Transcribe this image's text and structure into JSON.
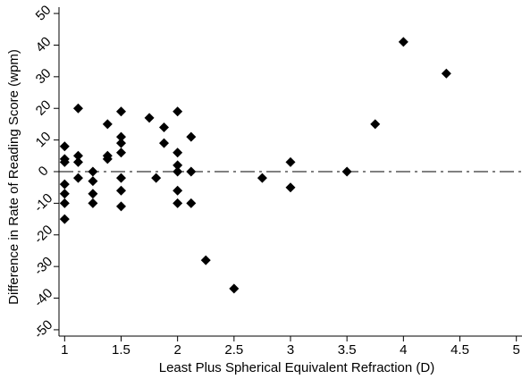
{
  "chart_data": {
    "type": "scatter",
    "title": "",
    "xlabel": "Least Plus Spherical Equivalent Refraction (D)",
    "ylabel": "Difference in Rate of Reading Score (wpm)",
    "xlim": [
      0.95,
      5.05
    ],
    "ylim": [
      -52,
      52
    ],
    "xticks": [
      1,
      1.5,
      2,
      2.5,
      3,
      3.5,
      4,
      4.5,
      5
    ],
    "xtick_labels": [
      "1",
      "1.5",
      "2",
      "2.5",
      "3",
      "3.5",
      "4",
      "4.5",
      "5"
    ],
    "yticks": [
      -50,
      -40,
      -30,
      -20,
      -10,
      0,
      10,
      20,
      30,
      40,
      50
    ],
    "ytick_labels": [
      "-50",
      "-40",
      "-30",
      "-20",
      "-10",
      "0",
      "10",
      "20",
      "30",
      "40",
      "50"
    ],
    "grid": false,
    "legend": "none",
    "marker": "diamond",
    "reference_line": {
      "y": 0,
      "style": "dash-dot"
    },
    "points": [
      [
        1,
        8
      ],
      [
        1,
        4
      ],
      [
        1,
        3
      ],
      [
        1,
        -4
      ],
      [
        1,
        -7
      ],
      [
        1,
        -10
      ],
      [
        1,
        -15
      ],
      [
        1.12,
        20
      ],
      [
        1.12,
        5
      ],
      [
        1.12,
        3
      ],
      [
        1.12,
        -2
      ],
      [
        1.25,
        0
      ],
      [
        1.25,
        -3
      ],
      [
        1.25,
        -7
      ],
      [
        1.25,
        -10
      ],
      [
        1.38,
        15
      ],
      [
        1.38,
        5
      ],
      [
        1.38,
        4
      ],
      [
        1.5,
        19
      ],
      [
        1.5,
        11
      ],
      [
        1.5,
        9
      ],
      [
        1.5,
        6
      ],
      [
        1.5,
        -2
      ],
      [
        1.5,
        -6
      ],
      [
        1.5,
        -11
      ],
      [
        1.75,
        17
      ],
      [
        1.81,
        -2
      ],
      [
        1.88,
        14
      ],
      [
        1.88,
        9
      ],
      [
        2,
        19
      ],
      [
        2,
        6
      ],
      [
        2,
        2
      ],
      [
        2,
        0
      ],
      [
        2,
        -6
      ],
      [
        2,
        -10
      ],
      [
        2.12,
        11
      ],
      [
        2.12,
        0
      ],
      [
        2.12,
        -10
      ],
      [
        2.25,
        -28
      ],
      [
        2.5,
        -37
      ],
      [
        2.75,
        -2
      ],
      [
        3,
        3
      ],
      [
        3,
        -5
      ],
      [
        3.5,
        0
      ],
      [
        3.75,
        15
      ],
      [
        4,
        41
      ],
      [
        4.38,
        31
      ]
    ]
  }
}
